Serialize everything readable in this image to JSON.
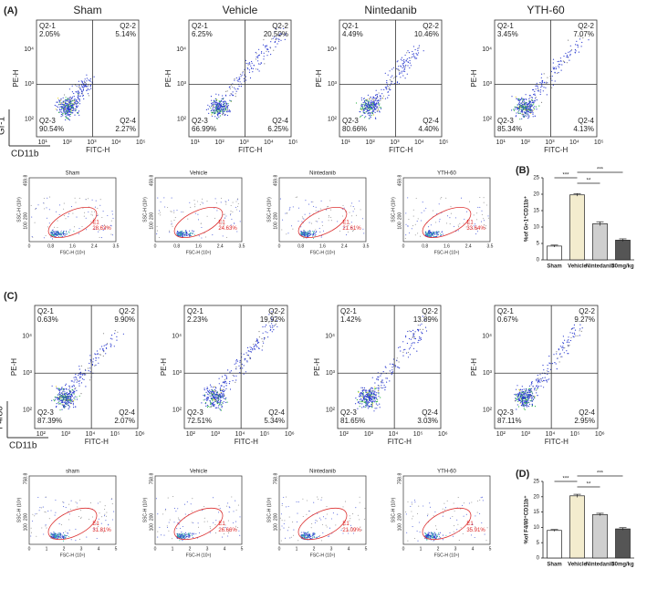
{
  "panel_a": {
    "label": "(A)",
    "marker_y": "Gr-1",
    "marker_x": "CD11b",
    "y_label": "PE-H",
    "x_label": "FITC-H",
    "yticks": [
      "10²",
      "10³",
      "10⁴"
    ],
    "xticks": [
      "10¹",
      "10²",
      "10³",
      "10⁴",
      "10⁵"
    ],
    "plots": [
      {
        "title": "Sham",
        "quadrants": [
          [
            "Q2-1",
            "2.05%"
          ],
          [
            "Q2-2",
            "5.14%"
          ],
          [
            "Q2-3",
            "90.54%"
          ],
          [
            "Q2-4",
            "2.27%"
          ]
        ]
      },
      {
        "title": "Vehicle",
        "quadrants": [
          [
            "Q2-1",
            "6.25%"
          ],
          [
            "Q2-2",
            "20.50%"
          ],
          [
            "Q2-3",
            "66.99%"
          ],
          [
            "Q2-4",
            "6.25%"
          ]
        ]
      },
      {
        "title": "Nintedanib",
        "quadrants": [
          [
            "Q2-1",
            "4.49%"
          ],
          [
            "Q2-2",
            "10.46%"
          ],
          [
            "Q2-3",
            "80.66%"
          ],
          [
            "Q2-4",
            "4.40%"
          ]
        ]
      },
      {
        "title": "YTH-60",
        "quadrants": [
          [
            "Q2-1",
            "3.45%"
          ],
          [
            "Q2-2",
            "7.07%"
          ],
          [
            "Q2-3",
            "85.34%"
          ],
          [
            "Q2-4",
            "4.13%"
          ]
        ]
      }
    ],
    "gate_plots": {
      "y_label": "SSC-H (10³)",
      "x_label": "FSC-H (10⁶)",
      "yticks": [
        "459.8",
        "100",
        "200"
      ],
      "xticks": [
        "0",
        "0.8",
        "1.6",
        "2.4",
        "3.5"
      ],
      "gate": "E1",
      "plots": [
        {
          "title": "Sham",
          "percent": "28.63%"
        },
        {
          "title": "Vehicle",
          "percent": "24.63%"
        },
        {
          "title": "Nintedanib",
          "percent": "21.61%"
        },
        {
          "title": "YTH-60",
          "percent": "33.64%"
        }
      ]
    }
  },
  "panel_c": {
    "label": "(C)",
    "marker_y": "F4/80",
    "marker_x": "CD11b",
    "y_label": "PE-H",
    "x_label": "FITC-H",
    "yticks": [
      "10²",
      "10³",
      "10⁴"
    ],
    "xticks": [
      "10²",
      "10³",
      "10⁴",
      "10⁵",
      "10⁶"
    ],
    "plots": [
      {
        "title": null,
        "quadrants": [
          [
            "Q2-1",
            "0.63%"
          ],
          [
            "Q2-2",
            "9.90%"
          ],
          [
            "Q2-3",
            "87.39%"
          ],
          [
            "Q2-4",
            "2.07%"
          ]
        ]
      },
      {
        "title": null,
        "quadrants": [
          [
            "Q2-1",
            "2.23%"
          ],
          [
            "Q2-2",
            "19.92%"
          ],
          [
            "Q2-3",
            "72.51%"
          ],
          [
            "Q2-4",
            "5.34%"
          ]
        ]
      },
      {
        "title": null,
        "quadrants": [
          [
            "Q2-1",
            "1.42%"
          ],
          [
            "Q2-2",
            "13.89%"
          ],
          [
            "Q2-3",
            "81.65%"
          ],
          [
            "Q2-4",
            "3.03%"
          ]
        ]
      },
      {
        "title": null,
        "quadrants": [
          [
            "Q2-1",
            "0.67%"
          ],
          [
            "Q2-2",
            "9.27%"
          ],
          [
            "Q2-3",
            "87.11%"
          ],
          [
            "Q2-4",
            "2.95%"
          ]
        ]
      }
    ],
    "gate_plots": {
      "y_label": "SSC-H (10³)",
      "x_label": "FSC-H (10⁶)",
      "yticks": [
        "758.8",
        "100",
        "200"
      ],
      "xticks": [
        "0",
        "1",
        "2",
        "3",
        "4",
        "5"
      ],
      "gate": "E1",
      "plots": [
        {
          "title": "sham",
          "percent": "31.81%"
        },
        {
          "title": "Vehicle",
          "percent": "26.66%"
        },
        {
          "title": "Nintedanib",
          "percent": "21.09%"
        },
        {
          "title": "YTH-60",
          "percent": "35.91%"
        }
      ]
    }
  },
  "chart_data": [
    {
      "type": "bar",
      "label": "(B)",
      "y_label": "%of Gr-1⁺CD11b⁺",
      "categories": [
        "Sham",
        "Vehicle",
        "Nintedanib",
        "30mg/kg"
      ],
      "values": [
        4.2,
        19.8,
        11.0,
        6.0
      ],
      "errors": [
        0.3,
        0.4,
        0.6,
        0.4
      ],
      "colors": [
        "#ffffff",
        "#f3ecce",
        "#cfcfcf",
        "#555555"
      ],
      "ylim": [
        0,
        25
      ],
      "yticks": [
        0,
        5,
        10,
        15,
        20,
        25
      ],
      "significance": [
        "***",
        "**",
        "***"
      ]
    },
    {
      "type": "bar",
      "label": "(D)",
      "y_label": "%of F4/80⁺CD11b⁺",
      "categories": [
        "Sham",
        "Vehicle",
        "Nintedanib",
        "30mg/kg"
      ],
      "values": [
        9.0,
        20.3,
        14.2,
        9.5
      ],
      "errors": [
        0.3,
        0.5,
        0.4,
        0.4
      ],
      "colors": [
        "#ffffff",
        "#f3ecce",
        "#cfcfcf",
        "#555555"
      ],
      "ylim": [
        0,
        25
      ],
      "yticks": [
        0,
        5,
        10,
        15,
        20,
        25
      ],
      "significance": [
        "***",
        "**",
        "***"
      ]
    }
  ]
}
